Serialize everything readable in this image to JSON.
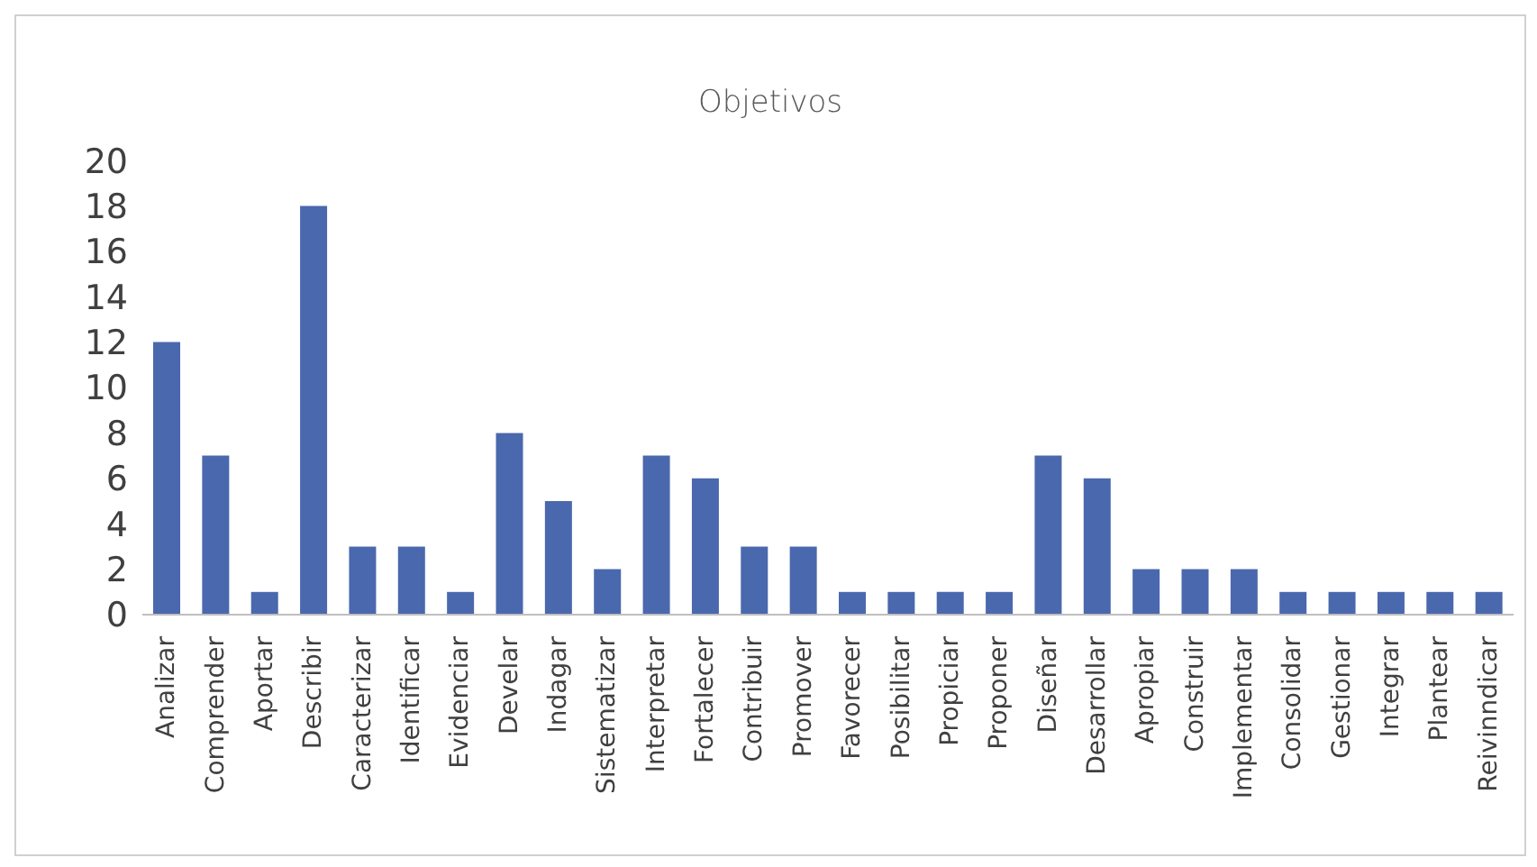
{
  "chart_data": {
    "type": "bar",
    "title": "Objetivos",
    "categories": [
      "Analizar",
      "Comprender",
      "Aportar",
      "Describir",
      "Caracterizar",
      "Identificar",
      "Evidenciar",
      "Develar",
      "Indagar",
      "Sistematizar",
      "Interpretar",
      "Fortalecer",
      "Contribuir",
      "Promover",
      "Favorecer",
      "Posibilitar",
      "Propiciar",
      "Proponer",
      "Diseñar",
      "Desarrollar",
      "Apropiar",
      "Construir",
      "Implementar",
      "Consolidar",
      "Gestionar",
      "Integrar",
      "Plantear",
      "Reivinndicar"
    ],
    "values": [
      12,
      7,
      1,
      18,
      3,
      3,
      1,
      8,
      5,
      2,
      7,
      6,
      3,
      3,
      1,
      1,
      1,
      1,
      7,
      6,
      2,
      2,
      2,
      1,
      1,
      1,
      1,
      1
    ],
    "color": "#4a68ad",
    "ylim": [
      0,
      20
    ],
    "yticks": [
      0,
      2,
      4,
      6,
      8,
      10,
      12,
      14,
      16,
      18,
      20
    ],
    "grid": false
  }
}
